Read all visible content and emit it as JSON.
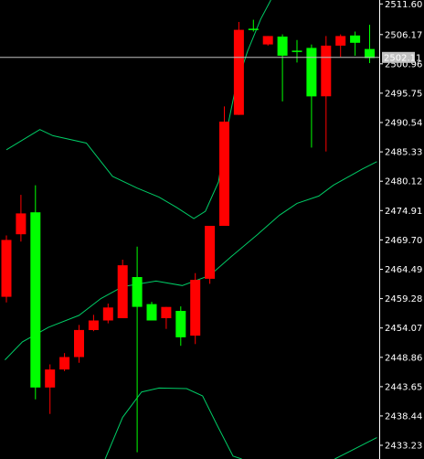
{
  "chart_data": {
    "type": "candlestick",
    "colors": {
      "background": "#000000",
      "bull": "#00ff00",
      "bear": "#ff0000",
      "band": "#00cc66",
      "axis": "#ffffff",
      "price_line": "#c0c0c0",
      "price_tag_bg": "#c0c0c0"
    },
    "y_axis": {
      "ylim": [
        2430.8,
        2512.3
      ],
      "ticks": [
        "2511.60",
        "2506.17",
        "2500.96",
        "2495.75",
        "2490.54",
        "2485.33",
        "2480.12",
        "2474.91",
        "2469.70",
        "2464.49",
        "2459.28",
        "2454.07",
        "2448.86",
        "2443.65",
        "2438.44",
        "2433.23"
      ],
      "tick_values": [
        2511.6,
        2506.17,
        2500.96,
        2495.75,
        2490.54,
        2485.33,
        2480.12,
        2474.91,
        2469.7,
        2464.49,
        2459.28,
        2454.07,
        2448.86,
        2443.65,
        2438.44,
        2433.23
      ]
    },
    "current_price": {
      "value": 2502.11,
      "label": "2502.11"
    },
    "candles": [
      {
        "open": 2469.7,
        "high": 2470.5,
        "low": 2458.6,
        "close": 2459.6
      },
      {
        "open": 2474.4,
        "high": 2477.7,
        "low": 2469.4,
        "close": 2470.7
      },
      {
        "open": 2443.5,
        "high": 2479.4,
        "low": 2441.4,
        "close": 2474.6
      },
      {
        "open": 2446.7,
        "high": 2447.6,
        "low": 2438.8,
        "close": 2443.5
      },
      {
        "open": 2448.9,
        "high": 2449.6,
        "low": 2446.4,
        "close": 2446.7
      },
      {
        "open": 2453.7,
        "high": 2454.6,
        "low": 2447.9,
        "close": 2448.9
      },
      {
        "open": 2455.4,
        "high": 2456.4,
        "low": 2453.5,
        "close": 2453.7
      },
      {
        "open": 2457.7,
        "high": 2458.4,
        "low": 2454.9,
        "close": 2455.4
      },
      {
        "open": 2465.2,
        "high": 2466.2,
        "low": 2455.8,
        "close": 2455.8
      },
      {
        "open": 2457.8,
        "high": 2468.5,
        "low": 2432.0,
        "close": 2463.1
      },
      {
        "open": 2455.4,
        "high": 2458.7,
        "low": 2455.4,
        "close": 2458.3
      },
      {
        "open": 2457.8,
        "high": 2457.8,
        "low": 2453.9,
        "close": 2455.8
      },
      {
        "open": 2452.4,
        "high": 2457.9,
        "low": 2450.9,
        "close": 2457.1
      },
      {
        "open": 2462.6,
        "high": 2463.8,
        "low": 2451.2,
        "close": 2452.7
      },
      {
        "open": 2472.2,
        "high": 2472.2,
        "low": 2461.9,
        "close": 2462.8
      },
      {
        "open": 2490.7,
        "high": 2493.4,
        "low": 2472.2,
        "close": 2472.2
      },
      {
        "open": 2507.0,
        "high": 2508.4,
        "low": 2491.9,
        "close": 2491.9
      },
      {
        "open": 2507.2,
        "high": 2508.8,
        "low": 2506.7,
        "close": 2507.2
      },
      {
        "open": 2505.9,
        "high": 2505.9,
        "low": 2504.2,
        "close": 2504.4
      },
      {
        "open": 2502.4,
        "high": 2506.2,
        "low": 2494.3,
        "close": 2505.8
      },
      {
        "open": 2503.3,
        "high": 2505.2,
        "low": 2501.2,
        "close": 2503.3
      },
      {
        "open": 2495.2,
        "high": 2504.4,
        "low": 2486.1,
        "close": 2503.8
      },
      {
        "open": 2504.2,
        "high": 2505.9,
        "low": 2485.4,
        "close": 2495.2
      },
      {
        "open": 2505.9,
        "high": 2506.2,
        "low": 2502.2,
        "close": 2504.2
      },
      {
        "open": 2504.7,
        "high": 2506.7,
        "low": 2502.4,
        "close": 2506.0
      },
      {
        "open": 2502.0,
        "high": 2507.9,
        "low": 2501.1,
        "close": 2503.6
      }
    ],
    "bands": {
      "upper": [
        {
          "i": 0,
          "v": 2485.7
        },
        {
          "i": 2.3,
          "v": 2489.3
        },
        {
          "i": 3.2,
          "v": 2488.2
        },
        {
          "i": 5.5,
          "v": 2486.9
        },
        {
          "i": 7.3,
          "v": 2481.0
        },
        {
          "i": 9.0,
          "v": 2478.9
        },
        {
          "i": 10.5,
          "v": 2477.3
        },
        {
          "i": 11.7,
          "v": 2475.5
        },
        {
          "i": 12.9,
          "v": 2473.5
        },
        {
          "i": 13.7,
          "v": 2474.8
        },
        {
          "i": 14.6,
          "v": 2480.0
        },
        {
          "i": 15.2,
          "v": 2489.5
        },
        {
          "i": 15.8,
          "v": 2497.0
        },
        {
          "i": 16.6,
          "v": 2503.2
        },
        {
          "i": 17.5,
          "v": 2508.9
        },
        {
          "i": 18.2,
          "v": 2512.3
        }
      ],
      "middle": [
        {
          "i": -0.1,
          "v": 2448.4
        },
        {
          "i": 1.1,
          "v": 2451.6
        },
        {
          "i": 2.9,
          "v": 2454.2
        },
        {
          "i": 5.0,
          "v": 2456.3
        },
        {
          "i": 6.5,
          "v": 2459.3
        },
        {
          "i": 8.0,
          "v": 2461.4
        },
        {
          "i": 10.3,
          "v": 2462.4
        },
        {
          "i": 12.1,
          "v": 2461.6
        },
        {
          "i": 14.0,
          "v": 2463.4
        },
        {
          "i": 15.5,
          "v": 2466.8
        },
        {
          "i": 17.3,
          "v": 2470.7
        },
        {
          "i": 18.8,
          "v": 2474.1
        },
        {
          "i": 20.0,
          "v": 2476.2
        },
        {
          "i": 21.5,
          "v": 2477.5
        },
        {
          "i": 22.5,
          "v": 2479.4
        },
        {
          "i": 24.5,
          "v": 2482.3
        },
        {
          "i": 25.5,
          "v": 2483.6
        }
      ],
      "lower": [
        {
          "i": 6.8,
          "v": 2430.8
        },
        {
          "i": 8.0,
          "v": 2438.2
        },
        {
          "i": 9.3,
          "v": 2442.7
        },
        {
          "i": 10.5,
          "v": 2443.4
        },
        {
          "i": 12.4,
          "v": 2443.3
        },
        {
          "i": 13.5,
          "v": 2442.0
        },
        {
          "i": 14.5,
          "v": 2436.8
        },
        {
          "i": 15.6,
          "v": 2431.3
        },
        {
          "i": 16.2,
          "v": 2430.8
        }
      ],
      "lower_tail": [
        {
          "i": 22.6,
          "v": 2430.8
        },
        {
          "i": 25.5,
          "v": 2434.6
        }
      ]
    }
  }
}
